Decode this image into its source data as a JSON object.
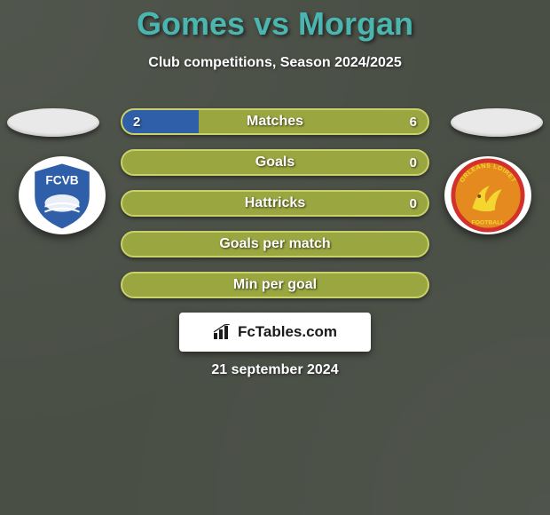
{
  "background_color": "#4a4f46",
  "title": {
    "text": "Gomes vs Morgan",
    "color": "#4bb6b0",
    "fontsize": 36
  },
  "subtitle": {
    "text": "Club competitions, Season 2024/2025",
    "fontsize": 16
  },
  "bars": {
    "fill_color": "#9aa63f",
    "border_color": "#c9d26a",
    "left_segment_color": "#2f5fa8",
    "label_fontsize": 16,
    "value_fontsize": 15,
    "rows": [
      {
        "label": "Matches",
        "left_value": "2",
        "right_value": "6",
        "left_ratio": 0.25
      },
      {
        "label": "Goals",
        "left_value": "",
        "right_value": "0",
        "left_ratio": 0.0
      },
      {
        "label": "Hattricks",
        "left_value": "",
        "right_value": "0",
        "left_ratio": 0.0
      },
      {
        "label": "Goals per match",
        "left_value": "",
        "right_value": "",
        "left_ratio": 0.0
      },
      {
        "label": "Min per goal",
        "left_value": "",
        "right_value": "",
        "left_ratio": 0.0
      }
    ]
  },
  "crests": {
    "left": {
      "name": "FCVB",
      "shield_fill": "#2f5fa8",
      "shield_stroke": "#ffffff",
      "text_color": "#ffffff"
    },
    "right": {
      "name": "ORLEANS LOIRET FOOTBALL",
      "circle_fill": "#e58a1f",
      "circle_stroke": "#d2312c",
      "accent": "#f4d631"
    }
  },
  "footer": {
    "brand": "FcTables.com",
    "brand_fontsize": 17,
    "date": "21 september 2024",
    "date_fontsize": 16
  }
}
